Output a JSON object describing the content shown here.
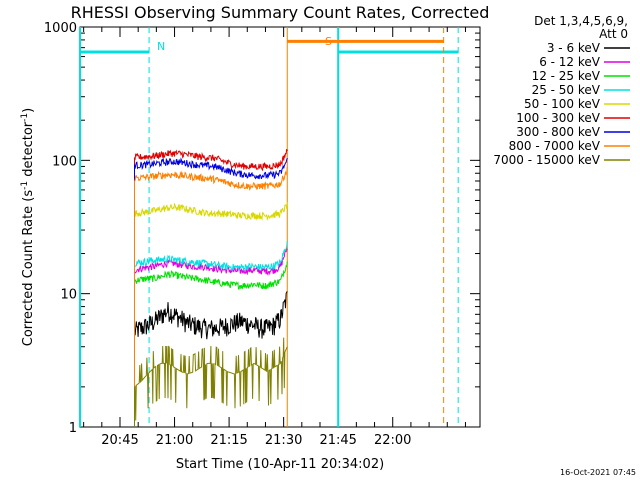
{
  "chart_data": {
    "type": "line",
    "title": "RHESSI Observing Summary Count Rates, Corrected",
    "xlabel": "Start Time (10-Apr-11 20:34:02)",
    "ylabel_main": "Corrected Count Rate (s",
    "ylabel_sup1": "-1",
    "ylabel_mid": " detector",
    "ylabel_sup2": "-1",
    "ylabel_end": ")",
    "y_scale": "log",
    "ylim": [
      1,
      1000
    ],
    "y_ticks": [
      {
        "value": 1,
        "label": "1"
      },
      {
        "value": 10,
        "label": "10"
      },
      {
        "value": 100,
        "label": "100"
      },
      {
        "value": 1000,
        "label": "1000"
      }
    ],
    "xlim_minutes_after_2034": [
      0,
      110
    ],
    "x_ticks": [
      {
        "minutes": 11,
        "label": "20:45"
      },
      {
        "minutes": 26,
        "label": "21:00"
      },
      {
        "minutes": 41,
        "label": "21:15"
      },
      {
        "minutes": 56,
        "label": "21:30"
      },
      {
        "minutes": 71,
        "label": "21:45"
      },
      {
        "minutes": 86,
        "label": "22:00"
      }
    ],
    "legend_header": [
      "Det 1,3,4,5,6,9,",
      "Att 0"
    ],
    "series": [
      {
        "name": "3 - 6 keV",
        "color": "#000000",
        "values": [
          5.2,
          5.5,
          5.8,
          6.2,
          6.8,
          7.5,
          7.0,
          6.5,
          6.0,
          5.8,
          5.6,
          5.5,
          5.5,
          5.6,
          5.8,
          6.0,
          6.2,
          6.0,
          5.8,
          5.5,
          5.5,
          5.8,
          6.5,
          9.5
        ]
      },
      {
        "name": "6 - 12 keV",
        "color": "#e000e0",
        "values": [
          15.0,
          15.5,
          15.8,
          16.0,
          16.5,
          17.0,
          16.8,
          16.5,
          16.3,
          16.0,
          16.0,
          15.8,
          15.5,
          15.2,
          15.0,
          14.8,
          14.8,
          15.0,
          15.0,
          14.8,
          14.8,
          15.0,
          16.0,
          22.0
        ]
      },
      {
        "name": "12 - 25 keV",
        "color": "#00e000",
        "values": [
          12.5,
          12.8,
          13.0,
          13.0,
          13.5,
          14.0,
          13.8,
          13.5,
          13.2,
          13.0,
          12.8,
          12.5,
          12.2,
          12.0,
          11.8,
          11.6,
          11.5,
          11.6,
          11.8,
          11.5,
          11.5,
          12.0,
          12.5,
          17.0
        ]
      },
      {
        "name": "25 - 50 keV",
        "color": "#00e0e0",
        "values": [
          17.0,
          17.2,
          17.5,
          17.8,
          18.0,
          18.2,
          18.0,
          17.8,
          17.5,
          17.2,
          17.0,
          16.8,
          16.5,
          16.2,
          16.0,
          15.8,
          15.8,
          16.0,
          16.0,
          15.8,
          15.8,
          16.2,
          17.0,
          24.0
        ]
      },
      {
        "name": "50 - 100 keV",
        "color": "#d8d800",
        "values": [
          40.0,
          40.5,
          41.0,
          42.0,
          43.0,
          44.0,
          44.5,
          44.0,
          43.0,
          42.0,
          41.0,
          40.0,
          40.0,
          40.0,
          39.5,
          39.0,
          38.5,
          38.5,
          38.5,
          38.5,
          38.5,
          39.0,
          40.0,
          46.0
        ]
      },
      {
        "name": "100 - 300 keV",
        "color": "#e00000",
        "values": [
          105,
          106,
          107,
          108,
          110,
          112,
          113,
          112,
          110,
          108,
          106,
          105,
          104,
          100,
          96,
          93,
          91,
          90,
          90,
          90,
          90,
          91,
          94,
          118
        ]
      },
      {
        "name": "300 - 800 keV",
        "color": "#0000e0",
        "values": [
          92,
          92,
          93,
          94,
          96,
          97,
          98,
          97,
          95,
          93,
          92,
          91,
          90,
          87,
          84,
          81,
          79,
          78,
          77,
          77,
          77,
          78,
          80,
          100
        ]
      },
      {
        "name": "800 - 7000 keV",
        "color": "#ff8000",
        "values": [
          74,
          74,
          75,
          76,
          77,
          78,
          78,
          77,
          76,
          75,
          74,
          73,
          72,
          70,
          68,
          66,
          65,
          64,
          64,
          64,
          64,
          65,
          67,
          85
        ]
      },
      {
        "name": "7000 - 15000 keV",
        "color": "#808000",
        "values": [
          2.0,
          2.2,
          2.5,
          2.8,
          3.0,
          3.0,
          2.8,
          2.6,
          2.5,
          2.6,
          2.8,
          3.0,
          3.0,
          2.8,
          2.6,
          2.5,
          2.6,
          2.8,
          3.0,
          2.8,
          2.6,
          2.8,
          3.0,
          4.0
        ]
      }
    ],
    "cyan_level": 650,
    "orange_level": 780,
    "marker_N": "N",
    "marker_S": "S",
    "timestamp": "16-Oct-2021 07:45"
  }
}
